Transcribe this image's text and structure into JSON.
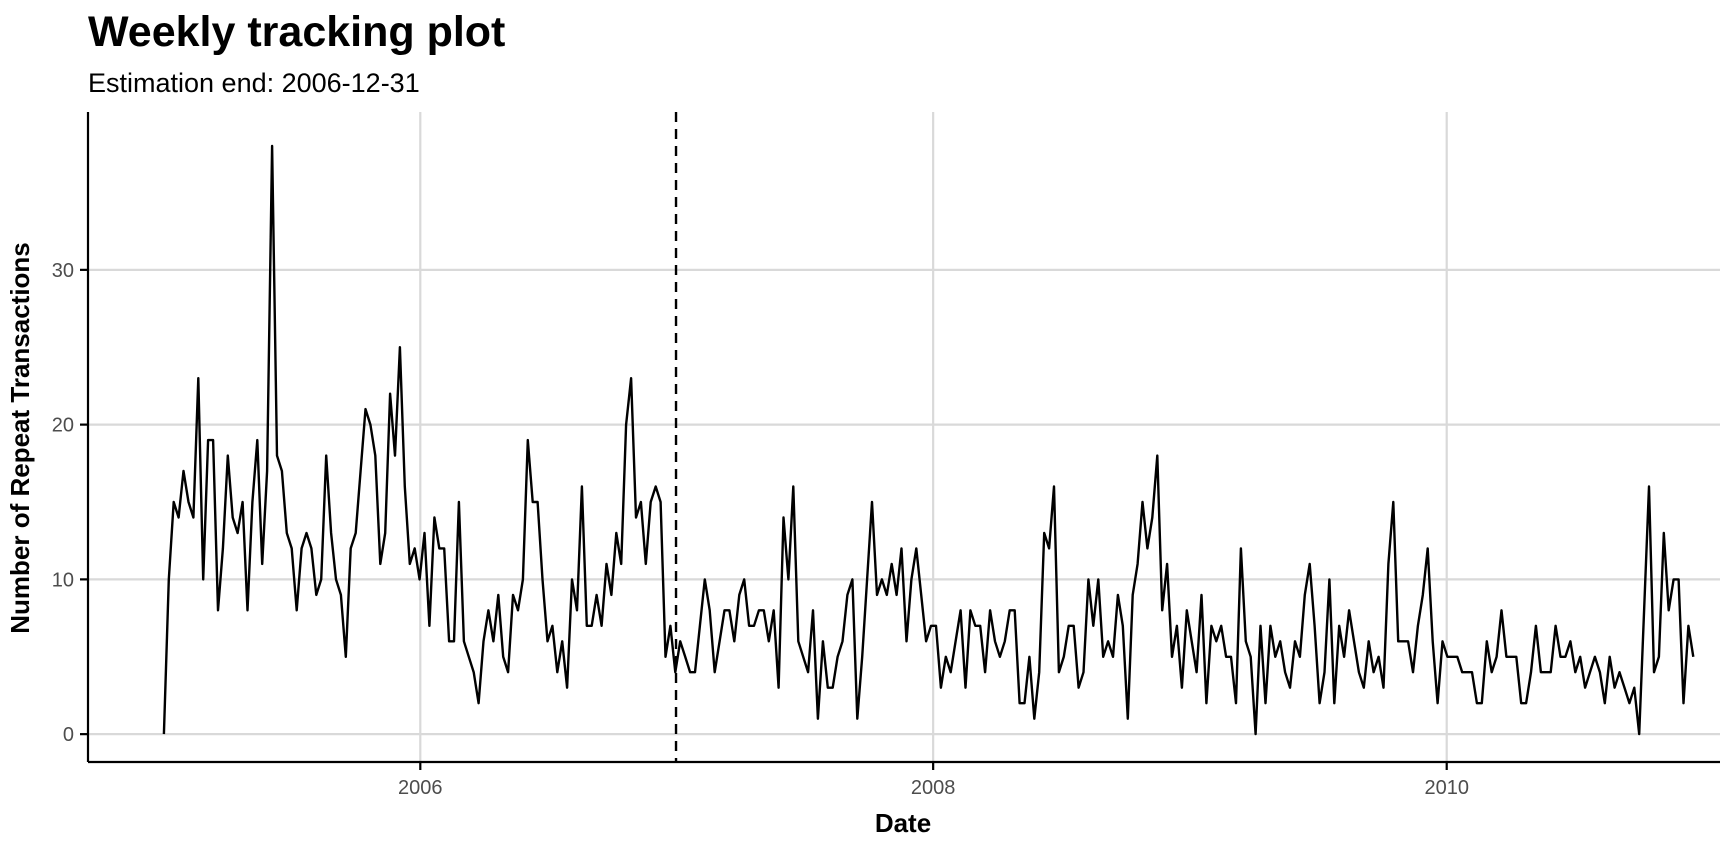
{
  "chart_data": {
    "type": "line",
    "title": "Weekly tracking plot",
    "subtitle": "Estimation end: 2006-12-31",
    "xlabel": "Date",
    "ylabel": "Number of Repeat Transactions",
    "x_start": "2005-01-01",
    "x_step_days": 7,
    "xlim": [
      "2004-09-15",
      "2011-01-25"
    ],
    "ylim": [
      -1.8,
      40.2
    ],
    "x_ticks": [
      {
        "date": "2006-01-01",
        "label": "2006"
      },
      {
        "date": "2008-01-01",
        "label": "2008"
      },
      {
        "date": "2010-01-01",
        "label": "2010"
      }
    ],
    "y_ticks": [
      0,
      10,
      20,
      30
    ],
    "estimation_end": "2006-12-31",
    "grid": true,
    "series": [
      {
        "color": "#000000",
        "values": [
          0,
          10,
          15,
          14,
          17,
          15,
          14,
          23,
          10,
          19,
          19,
          8,
          12,
          18,
          14,
          13,
          15,
          8,
          15,
          19,
          11,
          17,
          38,
          18,
          17,
          13,
          12,
          8,
          12,
          13,
          12,
          9,
          10,
          18,
          13,
          10,
          9,
          5,
          12,
          13,
          17,
          21,
          20,
          18,
          11,
          13,
          22,
          18,
          25,
          16,
          11,
          12,
          10,
          13,
          7,
          14,
          12,
          12,
          6,
          6,
          15,
          6,
          5,
          4,
          2,
          6,
          8,
          6,
          9,
          5,
          4,
          9,
          8,
          10,
          19,
          15,
          15,
          10,
          6,
          7,
          4,
          6,
          3,
          10,
          8,
          16,
          7,
          7,
          9,
          7,
          11,
          9,
          13,
          11,
          20,
          23,
          14,
          15,
          11,
          15,
          16,
          15,
          5,
          7,
          4,
          6,
          5,
          4,
          4,
          7,
          10,
          8,
          4,
          6,
          8,
          8,
          6,
          9,
          10,
          7,
          7,
          8,
          8,
          6,
          8,
          3,
          14,
          10,
          16,
          6,
          5,
          4,
          8,
          1,
          6,
          3,
          3,
          5,
          6,
          9,
          10,
          1,
          5,
          10,
          15,
          9,
          10,
          9,
          11,
          9,
          12,
          6,
          10,
          12,
          9,
          6,
          7,
          7,
          3,
          5,
          4,
          6,
          8,
          3,
          8,
          7,
          7,
          4,
          8,
          6,
          5,
          6,
          8,
          8,
          2,
          2,
          5,
          1,
          4,
          13,
          12,
          16,
          4,
          5,
          7,
          7,
          3,
          4,
          10,
          7,
          10,
          5,
          6,
          5,
          9,
          7,
          1,
          9,
          11,
          15,
          12,
          14,
          18,
          8,
          11,
          5,
          7,
          3,
          8,
          6,
          4,
          9,
          2,
          7,
          6,
          7,
          5,
          5,
          2,
          12,
          6,
          5,
          0,
          7,
          2,
          7,
          5,
          6,
          4,
          3,
          6,
          5,
          9,
          11,
          7,
          2,
          4,
          10,
          2,
          7,
          5,
          8,
          6,
          4,
          3,
          6,
          4,
          5,
          3,
          11,
          15,
          6,
          6,
          6,
          4,
          7,
          9,
          12,
          6,
          2,
          6,
          5,
          5,
          5,
          4,
          4,
          4,
          2,
          2,
          6,
          4,
          5,
          8,
          5,
          5,
          5,
          2,
          2,
          4,
          7,
          4,
          4,
          4,
          7,
          5,
          5,
          6,
          4,
          5,
          3,
          4,
          5,
          4,
          2,
          5,
          3,
          4,
          3,
          2,
          3,
          0,
          8,
          16,
          4,
          5,
          13,
          8,
          10,
          10,
          2,
          7,
          5
        ]
      }
    ]
  }
}
